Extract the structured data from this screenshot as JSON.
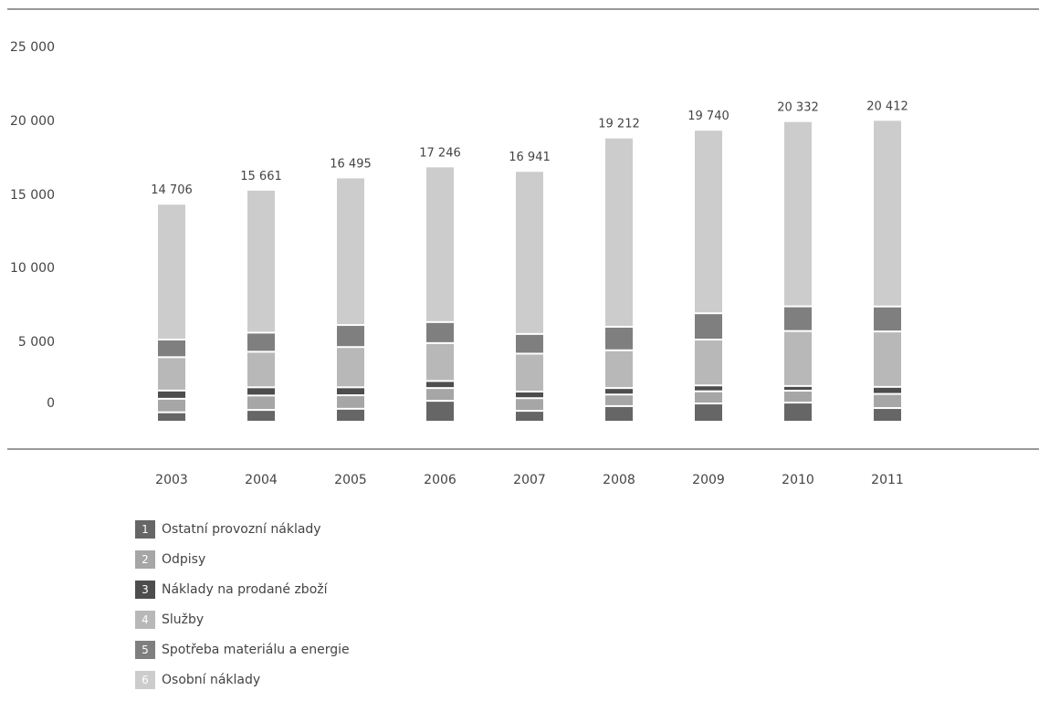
{
  "chart_data": {
    "type": "bar",
    "stacked": true,
    "title": "",
    "xlabel": "",
    "ylabel": "",
    "categories": [
      "2003",
      "2004",
      "2005",
      "2006",
      "2007",
      "2008",
      "2009",
      "2010",
      "2011"
    ],
    "totals": [
      "14 706",
      "15 661",
      "16 495",
      "17 246",
      "16 941",
      "19 212",
      "19 740",
      "20 332",
      "20 412"
    ],
    "y_ticks": [
      "0",
      "5 000",
      "10 000",
      "15 000",
      "20 000",
      "25 000"
    ],
    "ylim": [
      0,
      25000
    ],
    "grid": false,
    "legend_position": "bottom-left",
    "series": [
      {
        "key": "1",
        "name": "Ostatní provozní náklady",
        "color": "#666666",
        "values": [
          640,
          800,
          880,
          1420,
          740,
          1060,
          1240,
          1300,
          930
        ]
      },
      {
        "key": "2",
        "name": "Odpisy",
        "color": "#a6a6a6",
        "values": [
          920,
          980,
          920,
          870,
          860,
          790,
          830,
          810,
          960
        ]
      },
      {
        "key": "3",
        "name": "Náklady na prodané zboží",
        "color": "#4d4d4d",
        "values": [
          560,
          560,
          540,
          480,
          450,
          440,
          400,
          320,
          480
        ]
      },
      {
        "key": "4",
        "name": "Služby",
        "color": "#b8b8b8",
        "values": [
          2270,
          2420,
          2740,
          2580,
          2580,
          2570,
          3120,
          3740,
          3770
        ]
      },
      {
        "key": "5",
        "name": "Spotřeba materiálu a energie",
        "color": "#7f7f7f",
        "values": [
          1200,
          1300,
          1500,
          1430,
          1340,
          1600,
          1790,
          1680,
          1700
        ]
      },
      {
        "key": "6",
        "name": "Osobní náklady",
        "color": "#cccccc",
        "values": [
          9116,
          9601,
          9915,
          10466,
          10971,
          12752,
          12360,
          12482,
          12572
        ]
      }
    ]
  }
}
